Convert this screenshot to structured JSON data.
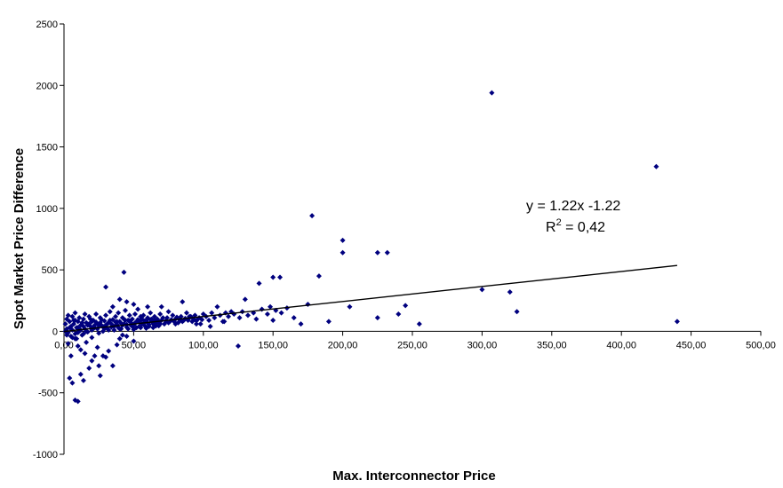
{
  "chart_data": {
    "type": "scatter",
    "xlabel": "Max. Interconnector Price",
    "ylabel": "Spot Market Price Difference",
    "xlim": [
      0,
      500
    ],
    "ylim": [
      -1000,
      2500
    ],
    "x_ticks": [
      0,
      50,
      100,
      150,
      200,
      250,
      300,
      350,
      400,
      450,
      500
    ],
    "x_tick_labels": [
      "0,00",
      "50,00",
      "100,00",
      "150,00",
      "200,00",
      "250,00",
      "300,00",
      "350,00",
      "400,00",
      "450,00",
      "500,00"
    ],
    "y_ticks": [
      -1000,
      -500,
      0,
      500,
      1000,
      1500,
      2000,
      2500
    ],
    "y_tick_labels": [
      "-1000",
      "-500",
      "0",
      "500",
      "1000",
      "1500",
      "2000",
      "2500"
    ],
    "marker_color": "#00007f",
    "trendline": {
      "slope": 1.22,
      "intercept": -1.22,
      "x_range": [
        0,
        440
      ],
      "equation_label": "y = 1.22x -1.22",
      "r2_prefix": "R",
      "r2_sup": "2",
      "r2_value": " = 0,42",
      "color": "#000000"
    },
    "points": [
      [
        307,
        1940
      ],
      [
        425,
        1340
      ],
      [
        178,
        940
      ],
      [
        200,
        740
      ],
      [
        200,
        640
      ],
      [
        225,
        640
      ],
      [
        232,
        640
      ],
      [
        183,
        450
      ],
      [
        150,
        440
      ],
      [
        155,
        440
      ],
      [
        43,
        480
      ],
      [
        30,
        360
      ],
      [
        140,
        390
      ],
      [
        300,
        340
      ],
      [
        320,
        320
      ],
      [
        205,
        200
      ],
      [
        225,
        110
      ],
      [
        245,
        210
      ],
      [
        255,
        60
      ],
      [
        190,
        80
      ],
      [
        175,
        220
      ],
      [
        440,
        80
      ],
      [
        325,
        160
      ],
      [
        125,
        -120
      ],
      [
        240,
        140
      ],
      [
        165,
        110
      ],
      [
        170,
        60
      ],
      [
        150,
        90
      ],
      [
        130,
        260
      ],
      [
        110,
        200
      ],
      [
        120,
        160
      ],
      [
        100,
        140
      ],
      [
        90,
        120
      ],
      [
        85,
        240
      ],
      [
        95,
        60
      ],
      [
        105,
        40
      ],
      [
        115,
        80
      ],
      [
        80,
        60
      ],
      [
        75,
        160
      ],
      [
        70,
        200
      ],
      [
        60,
        200
      ],
      [
        55,
        120
      ],
      [
        50,
        220
      ],
      [
        45,
        240
      ],
      [
        40,
        260
      ],
      [
        35,
        200
      ],
      [
        65,
        90
      ],
      [
        4,
        -380
      ],
      [
        6,
        -420
      ],
      [
        8,
        -560
      ],
      [
        10,
        -570
      ],
      [
        12,
        -350
      ],
      [
        14,
        -400
      ],
      [
        18,
        -300
      ],
      [
        22,
        -200
      ],
      [
        25,
        -280
      ],
      [
        26,
        -360
      ],
      [
        28,
        -200
      ],
      [
        30,
        -210
      ],
      [
        35,
        -280
      ],
      [
        15,
        -180
      ],
      [
        20,
        -240
      ],
      [
        10,
        -120
      ],
      [
        16,
        -90
      ],
      [
        8,
        -60
      ],
      [
        12,
        -150
      ],
      [
        5,
        -200
      ],
      [
        3,
        -100
      ],
      [
        24,
        -130
      ],
      [
        32,
        -160
      ],
      [
        38,
        -110
      ],
      [
        40,
        -60
      ],
      [
        45,
        -40
      ],
      [
        50,
        -80
      ],
      [
        42,
        -30
      ],
      [
        2,
        20
      ],
      [
        3,
        -10
      ],
      [
        5,
        40
      ],
      [
        6,
        10
      ],
      [
        7,
        60
      ],
      [
        8,
        -20
      ],
      [
        9,
        30
      ],
      [
        10,
        80
      ],
      [
        11,
        5
      ],
      [
        12,
        50
      ],
      [
        13,
        -30
      ],
      [
        14,
        100
      ],
      [
        15,
        20
      ],
      [
        16,
        70
      ],
      [
        17,
        -5
      ],
      [
        18,
        120
      ],
      [
        19,
        40
      ],
      [
        20,
        10
      ],
      [
        21,
        90
      ],
      [
        22,
        30
      ],
      [
        23,
        140
      ],
      [
        24,
        60
      ],
      [
        25,
        -15
      ],
      [
        26,
        110
      ],
      [
        27,
        45
      ],
      [
        28,
        0
      ],
      [
        29,
        85
      ],
      [
        30,
        130
      ],
      [
        31,
        25
      ],
      [
        32,
        70
      ],
      [
        33,
        160
      ],
      [
        34,
        35
      ],
      [
        35,
        95
      ],
      [
        36,
        10
      ],
      [
        37,
        120
      ],
      [
        38,
        55
      ],
      [
        39,
        150
      ],
      [
        40,
        80
      ],
      [
        41,
        20
      ],
      [
        42,
        110
      ],
      [
        43,
        60
      ],
      [
        44,
        170
      ],
      [
        45,
        35
      ],
      [
        46,
        90
      ],
      [
        47,
        130
      ],
      [
        48,
        50
      ],
      [
        49,
        100
      ],
      [
        50,
        15
      ],
      [
        51,
        140
      ],
      [
        52,
        75
      ],
      [
        53,
        180
      ],
      [
        54,
        40
      ],
      [
        55,
        95
      ],
      [
        56,
        60
      ],
      [
        57,
        130
      ],
      [
        58,
        85
      ],
      [
        59,
        25
      ],
      [
        60,
        110
      ],
      [
        61,
        55
      ],
      [
        62,
        150
      ],
      [
        63,
        80
      ],
      [
        64,
        30
      ],
      [
        65,
        120
      ],
      [
        66,
        70
      ],
      [
        67,
        100
      ],
      [
        68,
        45
      ],
      [
        69,
        140
      ],
      [
        70,
        90
      ],
      [
        72,
        60
      ],
      [
        74,
        110
      ],
      [
        76,
        80
      ],
      [
        78,
        130
      ],
      [
        80,
        100
      ],
      [
        82,
        70
      ],
      [
        84,
        120
      ],
      [
        86,
        90
      ],
      [
        88,
        150
      ],
      [
        90,
        110
      ],
      [
        92,
        80
      ],
      [
        94,
        130
      ],
      [
        96,
        100
      ],
      [
        98,
        60
      ],
      [
        102,
        120
      ],
      [
        104,
        90
      ],
      [
        106,
        150
      ],
      [
        108,
        110
      ],
      [
        112,
        130
      ],
      [
        114,
        80
      ],
      [
        116,
        150
      ],
      [
        118,
        120
      ],
      [
        122,
        140
      ],
      [
        126,
        110
      ],
      [
        128,
        160
      ],
      [
        132,
        130
      ],
      [
        136,
        150
      ],
      [
        138,
        100
      ],
      [
        142,
        180
      ],
      [
        146,
        140
      ],
      [
        148,
        200
      ],
      [
        152,
        170
      ],
      [
        156,
        150
      ],
      [
        160,
        190
      ],
      [
        1,
        60
      ],
      [
        2,
        100
      ],
      [
        3,
        130
      ],
      [
        4,
        80
      ],
      [
        5,
        -40
      ],
      [
        6,
        120
      ],
      [
        7,
        90
      ],
      [
        8,
        150
      ],
      [
        9,
        -60
      ],
      [
        10,
        30
      ],
      [
        11,
        110
      ],
      [
        13,
        70
      ],
      [
        14,
        -20
      ],
      [
        15,
        140
      ],
      [
        17,
        50
      ],
      [
        19,
        100
      ],
      [
        20,
        -50
      ],
      [
        21,
        30
      ],
      [
        23,
        75
      ],
      [
        25,
        50
      ],
      [
        27,
        95
      ],
      [
        29,
        20
      ],
      [
        31,
        60
      ],
      [
        33,
        90
      ],
      [
        35,
        45
      ],
      [
        37,
        75
      ],
      [
        39,
        30
      ],
      [
        41,
        65
      ],
      [
        43,
        100
      ],
      [
        45,
        55
      ],
      [
        47,
        85
      ],
      [
        49,
        40
      ],
      [
        51,
        70
      ],
      [
        53,
        95
      ],
      [
        55,
        30
      ],
      [
        57,
        65
      ],
      [
        59,
        90
      ],
      [
        61,
        40
      ],
      [
        63,
        100
      ],
      [
        65,
        50
      ],
      [
        67,
        75
      ],
      [
        69,
        60
      ],
      [
        71,
        110
      ],
      [
        73,
        85
      ],
      [
        75,
        70
      ],
      [
        77,
        95
      ],
      [
        79,
        80
      ],
      [
        81,
        115
      ],
      [
        83,
        95
      ],
      [
        85,
        80
      ],
      [
        87,
        105
      ],
      [
        89,
        90
      ],
      [
        91,
        120
      ],
      [
        93,
        100
      ],
      [
        95,
        85
      ],
      [
        97,
        110
      ],
      [
        99,
        95
      ],
      [
        1,
        0
      ],
      [
        2,
        -30
      ],
      [
        4,
        30
      ],
      [
        6,
        -50
      ],
      [
        8,
        90
      ],
      [
        10,
        -10
      ],
      [
        12,
        10
      ],
      [
        14,
        40
      ],
      [
        16,
        0
      ],
      [
        18,
        60
      ],
      [
        20,
        80
      ],
      [
        22,
        50
      ],
      [
        24,
        20
      ],
      [
        26,
        70
      ],
      [
        28,
        40
      ],
      [
        30,
        50
      ],
      [
        32,
        10
      ],
      [
        34,
        60
      ],
      [
        36,
        40
      ],
      [
        38,
        80
      ],
      [
        40,
        20
      ],
      [
        42,
        50
      ],
      [
        44,
        90
      ],
      [
        46,
        20
      ],
      [
        48,
        70
      ],
      [
        50,
        50
      ],
      [
        52,
        30
      ],
      [
        54,
        80
      ],
      [
        56,
        100
      ],
      [
        58,
        45
      ],
      [
        60,
        70
      ],
      [
        62,
        95
      ],
      [
        64,
        60
      ],
      [
        66,
        45
      ],
      [
        68,
        80
      ]
    ]
  }
}
